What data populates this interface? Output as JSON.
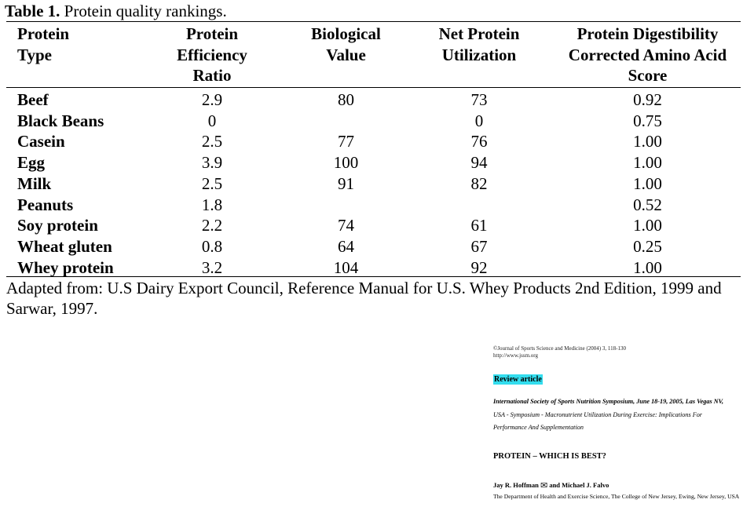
{
  "caption": {
    "label": "Table 1.",
    "text": "Protein quality rankings."
  },
  "table": {
    "headers": [
      [
        "Protein",
        "Type"
      ],
      [
        "Protein",
        "Efficiency",
        "Ratio"
      ],
      [
        "Biological",
        "Value"
      ],
      [
        "Net Protein",
        "Utilization"
      ],
      [
        "Protein Digestibility",
        "Corrected Amino Acid",
        "Score"
      ]
    ],
    "rows": [
      [
        "Beef",
        "2.9",
        "80",
        "73",
        "0.92"
      ],
      [
        "Black Beans",
        "0",
        "",
        "0",
        "0.75"
      ],
      [
        "Casein",
        "2.5",
        "77",
        "76",
        "1.00"
      ],
      [
        "Egg",
        "3.9",
        "100",
        "94",
        "1.00"
      ],
      [
        "Milk",
        "2.5",
        "91",
        "82",
        "1.00"
      ],
      [
        "Peanuts",
        "1.8",
        "",
        "",
        "0.52"
      ],
      [
        "Soy protein",
        "2.2",
        "74",
        "61",
        "1.00"
      ],
      [
        "Wheat gluten",
        "0.8",
        "64",
        "67",
        "0.25"
      ],
      [
        "Whey protein",
        "3.2",
        "104",
        "92",
        "1.00"
      ]
    ]
  },
  "source": "Adapted from: U.S Dairy Export Council, Reference Manual for U.S. Whey Products 2nd Edition, 1999 and Sarwar, 1997.",
  "reference": {
    "journal_line1": "©Journal of Sports Science and Medicine (2004) 3, 118-130",
    "journal_line2": "http://www.jssm.org",
    "badge": "Review article",
    "symposium_bold": "International Society of Sports Nutrition Symposium, June 18-19, 2005, Las Vegas NV,",
    "symposium_line2": "USA - Symposium - Macronutrient Utilization During Exercise: Implications For",
    "symposium_line3": "Performance And Supplementation",
    "title": "PROTEIN – WHICH IS BEST?",
    "author1": "Jay R. Hoffman",
    "email_icon": "envelope-icon",
    "author2": "and Michael J. Falvo",
    "affiliation": "The Department of Health and Exercise Science, The College of New Jersey, Ewing, New Jersey, USA",
    "badge_color": "#33ddee"
  }
}
